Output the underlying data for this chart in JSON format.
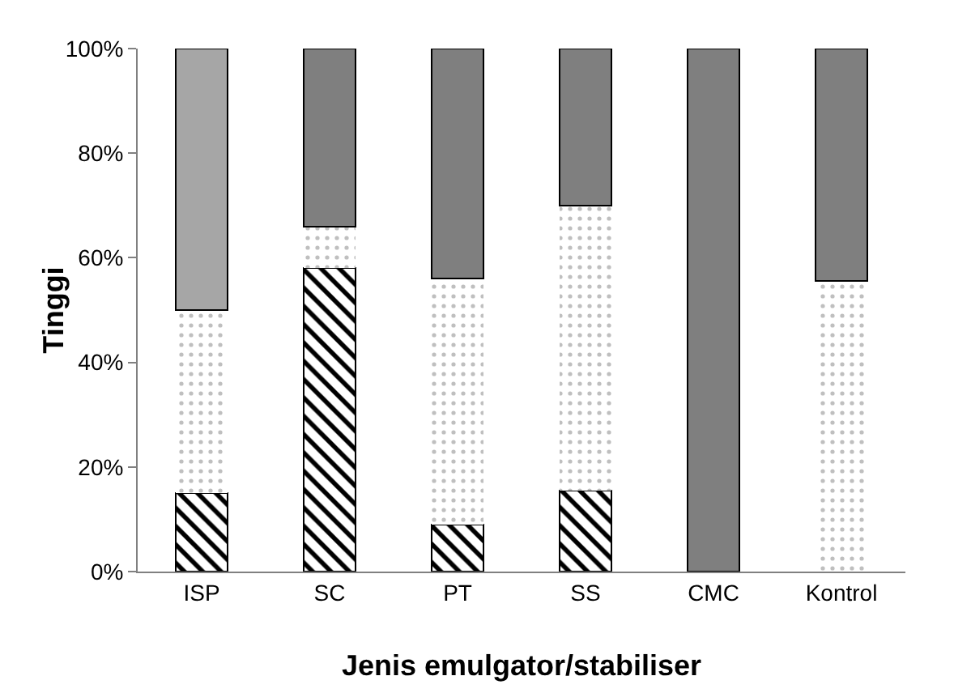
{
  "chart_data": {
    "type": "bar",
    "stacked": true,
    "xlabel": "Jenis emulgator/stabiliser",
    "ylabel": "Tinggi",
    "categories": [
      "ISP",
      "SC",
      "PT",
      "SS",
      "CMC",
      "Kontrol"
    ],
    "series": [
      {
        "color": "#000000",
        "values": [
          15,
          58,
          9,
          15.5,
          0,
          0
        ]
      },
      {
        "color": "#ffffff",
        "values": [
          35,
          8,
          47,
          54.5,
          0,
          55.5
        ]
      },
      {
        "color": "#7f7f7f",
        "colors": [
          "#a6a6a6",
          "#7f7f7f",
          "#7f7f7f",
          "#7f7f7f",
          "#7f7f7f",
          "#7f7f7f"
        ],
        "values": [
          50,
          34,
          44,
          30,
          100,
          44.5
        ]
      }
    ],
    "ylim": [
      0,
      100
    ],
    "yticks": [
      {
        "value": 0,
        "label": "0%"
      },
      {
        "value": 20,
        "label": "20%"
      },
      {
        "value": 40,
        "label": "40%"
      },
      {
        "value": 60,
        "label": "60%"
      },
      {
        "value": 80,
        "label": "80%"
      },
      {
        "value": 100,
        "label": "100%"
      }
    ],
    "grid": false
  }
}
